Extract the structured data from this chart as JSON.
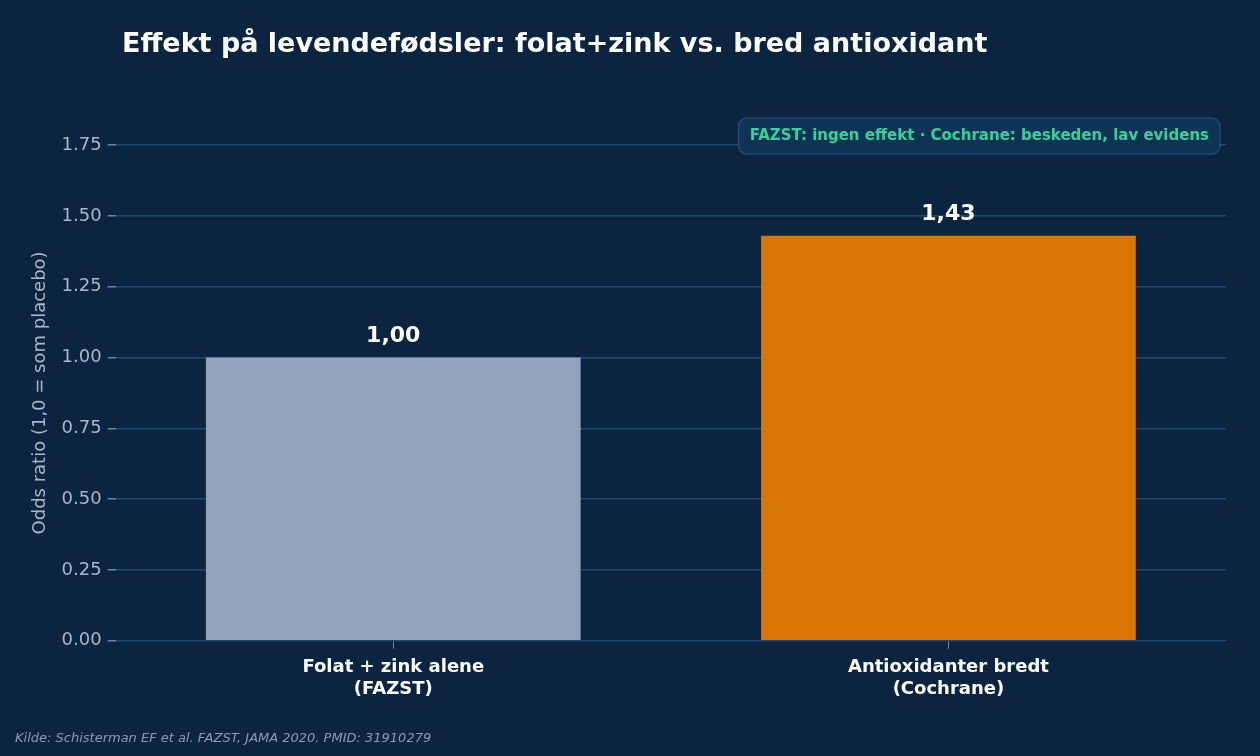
{
  "chart_data": {
    "type": "bar",
    "title": "Effekt på levendefødsler: folat+zink vs. bred antioxidant",
    "ylabel": "Odds ratio (1,0 = som placebo)",
    "categories": [
      "Folat + zink alene\n(FAZST)",
      "Antioxidanter bredt\n(Cochrane)"
    ],
    "values": [
      1.0,
      1.43
    ],
    "colors": [
      "#94a3bc",
      "#d97706"
    ],
    "value_labels": [
      "1,00",
      "1,43"
    ],
    "ylim": [
      0,
      1.75
    ],
    "yticks": [
      {
        "value": 0,
        "label": "0.00"
      },
      {
        "value": 0.25,
        "label": "0.25"
      },
      {
        "value": 0.5,
        "label": "0.50"
      },
      {
        "value": 0.75,
        "label": "0.75"
      },
      {
        "value": 1,
        "label": "1.00"
      },
      {
        "value": 1.25,
        "label": "1.25"
      },
      {
        "value": 1.5,
        "label": "1.50"
      },
      {
        "value": 1.75,
        "label": "1.75"
      }
    ],
    "grid": "y",
    "legend": false,
    "annotations": [
      "FAZST: ingen effekt · Cochrane: beskeden, lav evidens",
      "Kilde: Schisterman EF et al. FAZST, JAMA 2020. PMID: 31910279"
    ]
  }
}
